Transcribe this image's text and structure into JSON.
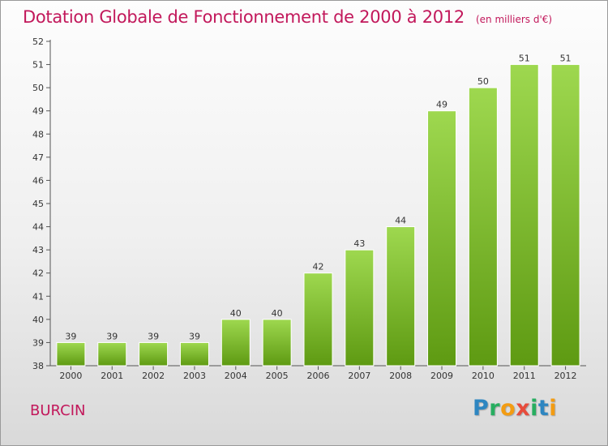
{
  "title": "Dotation Globale de Fonctionnement de 2000 à 2012",
  "unit": "(en milliers d'€)",
  "commune": "BURCIN",
  "logo": {
    "letters": [
      "P",
      "r",
      "o",
      "x",
      "i",
      "t",
      "i"
    ],
    "colors": [
      "#2e86c1",
      "#27ae60",
      "#f39c12",
      "#e74c3c",
      "#27ae60",
      "#2e86c1",
      "#f39c12"
    ]
  },
  "colors": {
    "title": "#c2185b",
    "bar_top": "#9ed84f",
    "bar_bottom": "#5e9a12",
    "axis": "#555555",
    "grid": "#d0d0d0"
  },
  "chart_data": {
    "type": "bar",
    "categories": [
      "2000",
      "2001",
      "2002",
      "2003",
      "2004",
      "2005",
      "2006",
      "2007",
      "2008",
      "2009",
      "2010",
      "2011",
      "2012"
    ],
    "values": [
      39,
      39,
      39,
      39,
      40,
      40,
      42,
      43,
      44,
      49,
      50,
      51,
      51
    ],
    "ylim": [
      38,
      52
    ],
    "yticks": [
      38,
      39,
      40,
      41,
      42,
      43,
      44,
      45,
      46,
      47,
      48,
      49,
      50,
      51,
      52
    ],
    "data_labels": true,
    "grid": false
  }
}
